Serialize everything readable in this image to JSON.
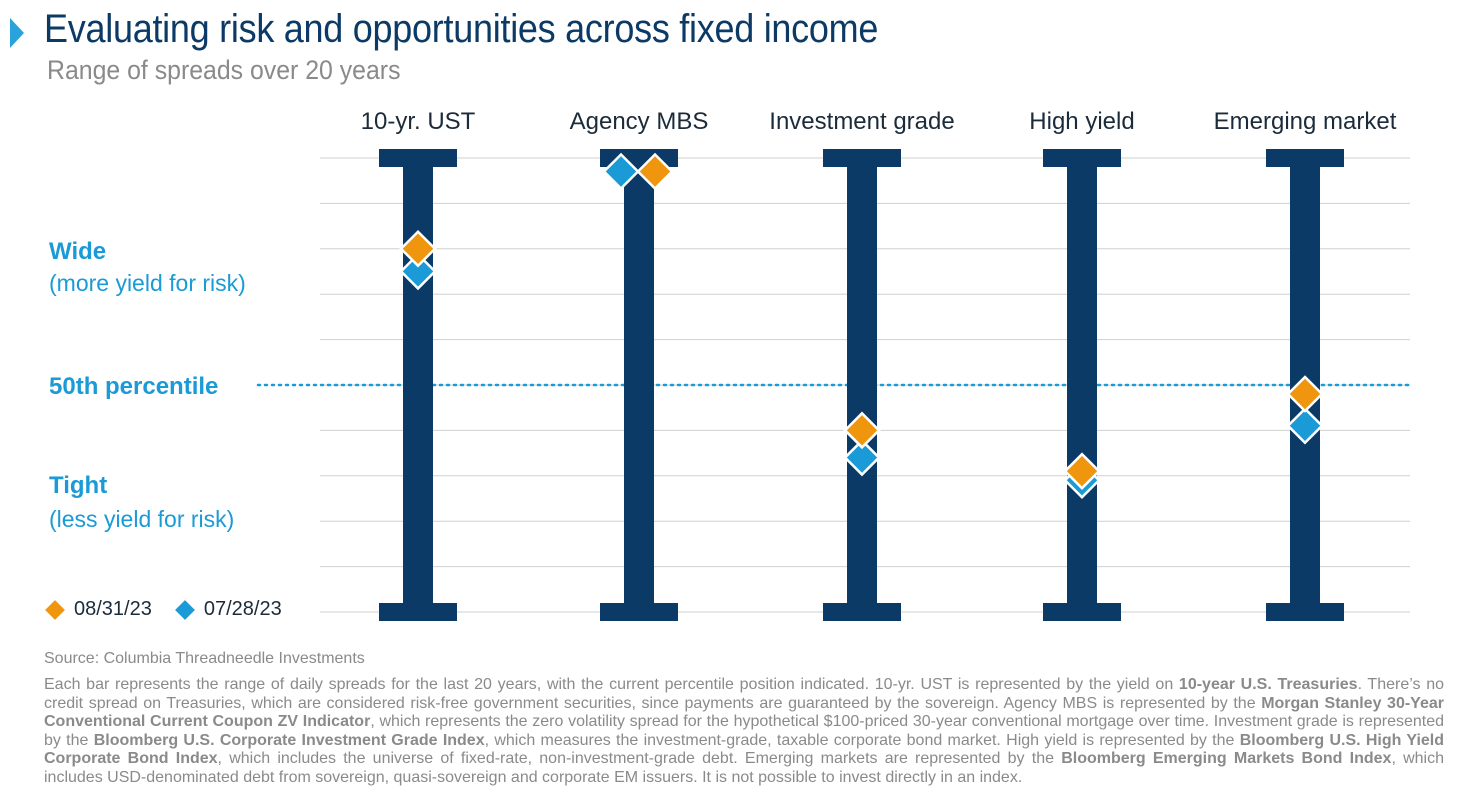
{
  "header": {
    "title": "Evaluating risk and opportunities across fixed income",
    "subtitle": "Range of spreads over 20 years"
  },
  "side_labels": {
    "wide": "Wide",
    "wide_sub": "(more yield for risk)",
    "median": "50th percentile",
    "tight": "Tight",
    "tight_sub": "(less yield for risk)"
  },
  "legend": [
    {
      "label": "08/31/23",
      "color": "#f0960e"
    },
    {
      "label": "07/28/23",
      "color": "#1a9ad6"
    }
  ],
  "colors": {
    "bar": "#0b3a66",
    "orange": "#f0960e",
    "blue": "#1a9ad6",
    "grid": "#d0d0d0"
  },
  "chart_data": {
    "type": "scatter",
    "categories": [
      "10-yr. UST",
      "Agency MBS",
      "Investment grade",
      "High yield",
      "Emerging market"
    ],
    "ylim": [
      0,
      100
    ],
    "reference_line": 50,
    "grid": true,
    "series": [
      {
        "name": "08/31/23",
        "values": [
          82,
          99,
          42,
          33,
          50
        ]
      },
      {
        "name": "07/28/23",
        "values": [
          77,
          99,
          36,
          31,
          43
        ]
      }
    ]
  },
  "footer": {
    "source": "Source: Columbia Threadneedle Investments",
    "note_parts": [
      {
        "t": "Each bar represents the range of daily spreads for the last 20 years, with the current percentile position indicated. 10-yr. UST is represented by the yield on ",
        "b": false
      },
      {
        "t": "10-year U.S. Treasuries",
        "b": true
      },
      {
        "t": ". There’s no credit spread on Treasuries, which are considered risk-free government securities, since payments are guaranteed by the sovereign. Agency MBS is represented by the ",
        "b": false
      },
      {
        "t": "Morgan Stanley 30-Year Conventional Current Coupon ZV Indicator",
        "b": true
      },
      {
        "t": ", which represents the zero volatility spread for the hypothetical $100-priced 30-year conventional mortgage over time. Investment grade is represented by the ",
        "b": false
      },
      {
        "t": "Bloomberg U.S. Corporate Investment Grade Index",
        "b": true
      },
      {
        "t": ", which measures the investment-grade, taxable corporate bond market. High yield is represented by the ",
        "b": false
      },
      {
        "t": "Bloomberg U.S. High Yield Corporate Bond Index",
        "b": true
      },
      {
        "t": ", which includes the universe of fixed-rate, non-investment-grade debt. Emerging markets are represented by the ",
        "b": false
      },
      {
        "t": "Bloomberg Emerging Markets Bond Index",
        "b": true
      },
      {
        "t": ", which includes USD-denominated debt from sovereign, quasi-sovereign and corporate EM issuers. It is not possible to invest directly in an index.",
        "b": false
      }
    ]
  }
}
